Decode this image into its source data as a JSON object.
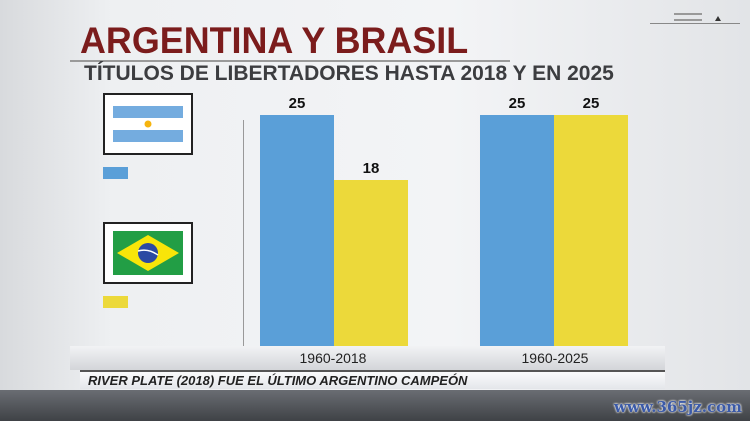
{
  "title": "ARGENTINA Y BRASIL",
  "subtitle": "TÍTULOS DE LIBERTADORES HASTA 2018 Y EN 2025",
  "footer_text": "RIVER PLATE (2018) FUE EL ÚLTIMO ARGENTINO CAMPEÓN",
  "watermark": "www.365jz.com",
  "colors": {
    "argentina": "#5a9fd8",
    "brasil": "#ecd93a",
    "title": "#7b1c1c"
  },
  "legend": [
    {
      "icon": "argentina-flag-icon",
      "color": "#5a9fd8"
    },
    {
      "icon": "brazil-flag-icon",
      "color": "#ecd93a"
    }
  ],
  "chart_data": {
    "type": "bar",
    "title": "TÍTULOS DE LIBERTADORES HASTA 2018 Y EN 2025",
    "categories": [
      "1960-2018",
      "1960-2025"
    ],
    "series": [
      {
        "values": [
          25,
          25
        ],
        "color": "#5a9fd8"
      },
      {
        "values": [
          18,
          25
        ],
        "color": "#ecd93a"
      }
    ],
    "data_labels": [
      [
        "25",
        "25"
      ],
      [
        "18",
        "25"
      ]
    ],
    "ylim": [
      0,
      25
    ],
    "grid": false,
    "legend": "left"
  }
}
